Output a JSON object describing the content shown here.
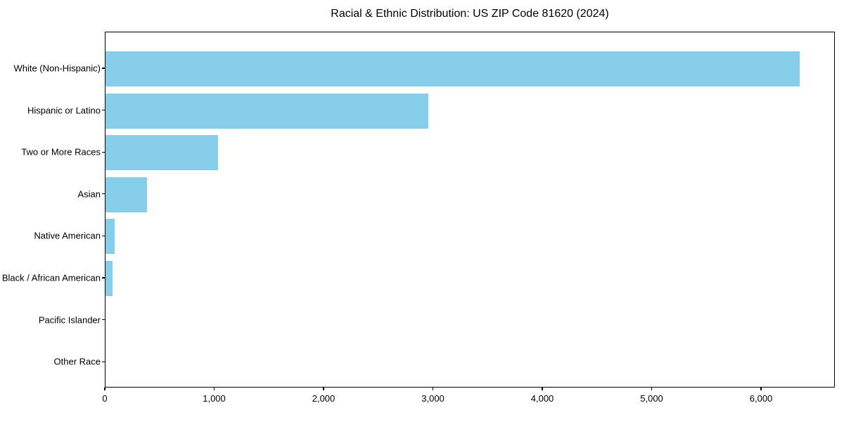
{
  "figure": {
    "title": "Racial & Ethnic Distribution: US ZIP Code 81620 (2024)"
  },
  "chart_data": {
    "type": "bar",
    "orientation": "horizontal",
    "title": "Racial & Ethnic Distribution: US ZIP Code 81620 (2024)",
    "categories": [
      "White (Non-Hispanic)",
      "Hispanic or Latino",
      "Two or More Races",
      "Asian",
      "Native American",
      "Black / African American",
      "Pacific Islander",
      "Other Race"
    ],
    "values": [
      6350,
      2950,
      1030,
      380,
      85,
      65,
      0,
      0
    ],
    "xlabel": "",
    "ylabel": "",
    "xlim": [
      0,
      6675
    ],
    "x_ticks": [
      0,
      1000,
      2000,
      3000,
      4000,
      5000,
      6000
    ],
    "x_tick_labels": [
      "0",
      "1,000",
      "2,000",
      "3,000",
      "4,000",
      "5,000",
      "6,000"
    ],
    "bar_color": "#87CEEB",
    "grid": false,
    "legend_position": "none"
  }
}
